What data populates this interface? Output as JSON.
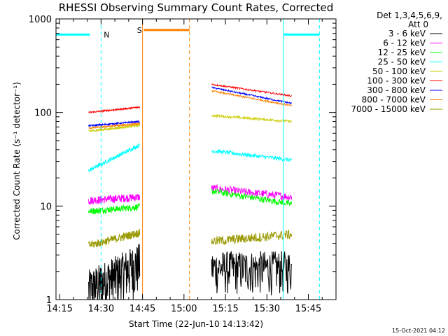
{
  "chart_data": {
    "type": "line",
    "title": "RHESSI Observing Summary Count Rates, Corrected",
    "xlabel": "Start Time (22-Jun-10 14:13:42)",
    "ylabel": "Corrected Count Rate (s⁻¹ detector⁻¹)",
    "y_scale": "log",
    "ylim": [
      1,
      1000
    ],
    "xlim": [
      "14:13:42",
      "15:55:00"
    ],
    "x_tick_labels": [
      "14:15",
      "14:30",
      "14:45",
      "15:00",
      "15:15",
      "15:30",
      "15:45"
    ],
    "x_ticks_min": [
      855,
      870,
      885,
      900,
      915,
      930,
      945
    ],
    "y_tick_labels": [
      "1",
      "10",
      "100",
      "1000"
    ],
    "y_ticks": [
      1,
      10,
      100,
      1000
    ],
    "legend": {
      "placement": "right",
      "header_line1": "Det 1,3,4,5,6,9,",
      "header_line2": "Att 0"
    },
    "series": [
      {
        "name": "3 - 6 keV",
        "color": "#000000",
        "segments": [
          {
            "x": [
              "14:25:30",
              "14:44:00"
            ],
            "y": [
              1.3,
              2.5
            ],
            "noise": 0.6
          },
          {
            "x": [
              "15:10:00",
              "15:39:00"
            ],
            "y": [
              2.2,
              2.2
            ],
            "noise": 0.5
          }
        ]
      },
      {
        "name": "6 - 12 keV",
        "color": "#ff00ff",
        "segments": [
          {
            "x": [
              "14:25:30",
              "14:44:00"
            ],
            "y": [
              11.5,
              12.5
            ],
            "noise": 0.1
          },
          {
            "x": [
              "15:10:00",
              "15:39:00"
            ],
            "y": [
              15.5,
              12.5
            ],
            "noise": 0.1
          }
        ]
      },
      {
        "name": "12 - 25 keV",
        "color": "#00ff00",
        "segments": [
          {
            "x": [
              "14:25:30",
              "14:44:00"
            ],
            "y": [
              8.8,
              9.8
            ],
            "noise": 0.08
          },
          {
            "x": [
              "15:10:00",
              "15:39:00"
            ],
            "y": [
              14.5,
              10.5
            ],
            "noise": 0.08
          }
        ]
      },
      {
        "name": "25 - 50 keV",
        "color": "#00ffff",
        "segments": [
          {
            "x": [
              "14:25:30",
              "14:44:00"
            ],
            "y": [
              24,
              45
            ],
            "noise": 0.05
          },
          {
            "x": [
              "15:10:00",
              "15:39:00"
            ],
            "y": [
              39,
              31
            ],
            "noise": 0.05
          }
        ]
      },
      {
        "name": "50 - 100 keV",
        "color": "#cccc00",
        "segments": [
          {
            "x": [
              "14:25:30",
              "14:44:00"
            ],
            "y": [
              63,
              73
            ],
            "noise": 0.03
          },
          {
            "x": [
              "15:10:00",
              "15:39:00"
            ],
            "y": [
              93,
              80
            ],
            "noise": 0.03
          }
        ]
      },
      {
        "name": "100 - 300 keV",
        "color": "#ff0000",
        "segments": [
          {
            "x": [
              "14:25:30",
              "14:44:00"
            ],
            "y": [
              100,
              114
            ],
            "noise": 0.02
          },
          {
            "x": [
              "15:10:00",
              "15:39:00"
            ],
            "y": [
              200,
              150
            ],
            "noise": 0.02
          }
        ]
      },
      {
        "name": "300 - 800 keV",
        "color": "#0000ff",
        "segments": [
          {
            "x": [
              "14:25:30",
              "14:44:00"
            ],
            "y": [
              72,
              80
            ],
            "noise": 0.02
          },
          {
            "x": [
              "15:10:00",
              "15:39:00"
            ],
            "y": [
              185,
              125
            ],
            "noise": 0.02
          }
        ]
      },
      {
        "name": "800 - 7000 keV",
        "color": "#ff8000",
        "segments": [
          {
            "x": [
              "14:25:30",
              "14:44:00"
            ],
            "y": [
              68,
              76
            ],
            "noise": 0.02
          },
          {
            "x": [
              "15:10:00",
              "15:39:00"
            ],
            "y": [
              170,
              118
            ],
            "noise": 0.02
          }
        ]
      },
      {
        "name": "7000 - 15000 keV",
        "color": "#999900",
        "segments": [
          {
            "x": [
              "14:25:30",
              "14:44:00"
            ],
            "y": [
              3.8,
              5.2
            ],
            "noise": 0.1
          },
          {
            "x": [
              "15:10:00",
              "15:39:00"
            ],
            "y": [
              4.2,
              5.0
            ],
            "noise": 0.12
          }
        ]
      }
    ],
    "annotations": {
      "night": {
        "label": "N",
        "color": "#00ffff",
        "bars": [
          {
            "x": [
              "14:13:42",
              "14:26:00"
            ],
            "y": 680
          },
          {
            "x": [
              "15:36:00",
              "15:49:00"
            ],
            "y": 680
          }
        ],
        "solid_lines": [
          "14:13:42",
          "15:36:00"
        ],
        "dashed_lines": [
          "14:30:00",
          "15:49:00"
        ]
      },
      "saa": {
        "label": "S",
        "color": "#ff8000",
        "bars": [
          {
            "x": [
              "14:45:30",
              "15:02:00"
            ],
            "y": 760
          }
        ],
        "solid_lines": [
          "14:45:00"
        ],
        "dashed_lines": [
          "15:02:00"
        ]
      }
    },
    "grid": false
  },
  "footer_timestamp": "15-Oct-2021 04:12"
}
